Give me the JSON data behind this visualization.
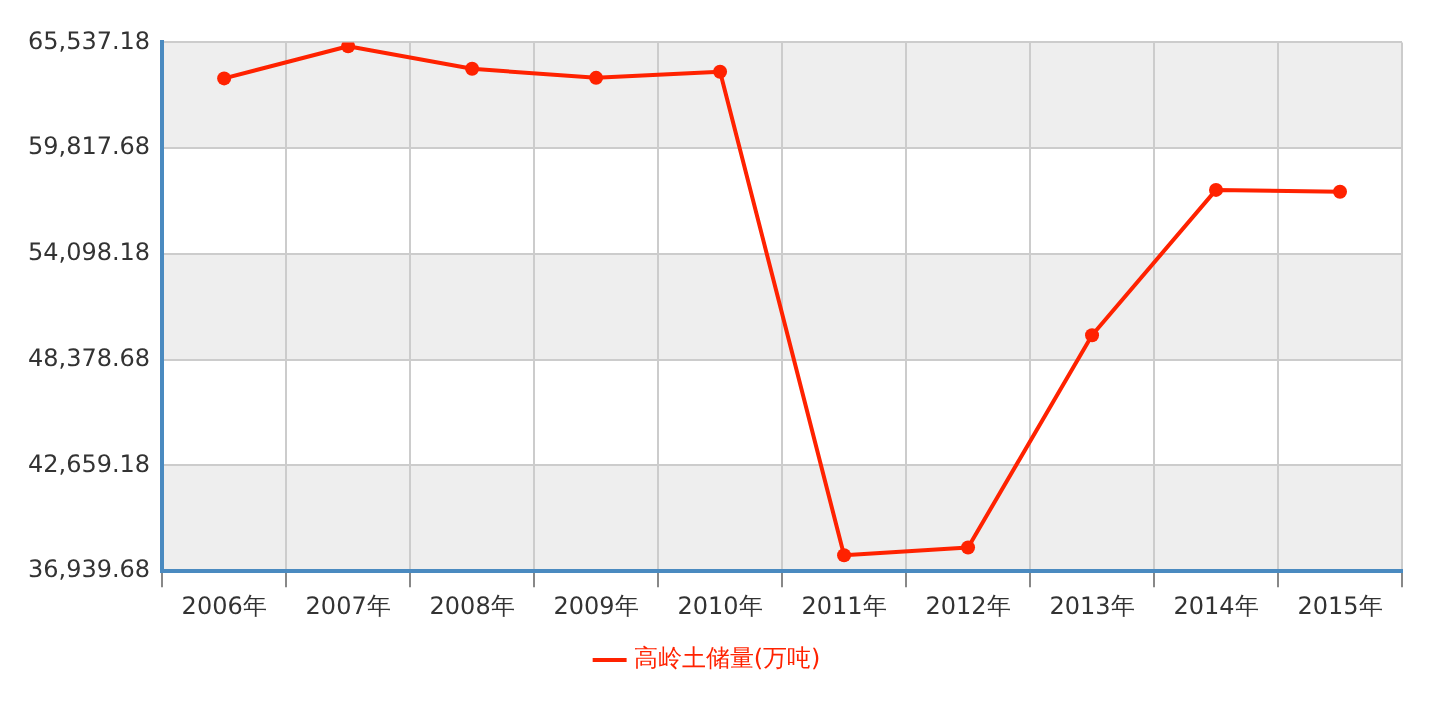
{
  "chart_data": {
    "type": "line",
    "categories": [
      "2006年",
      "2007年",
      "2008年",
      "2009年",
      "2010年",
      "2011年",
      "2012年",
      "2013年",
      "2014年",
      "2015年"
    ],
    "series": [
      {
        "name": "高岭土储量(万吨)",
        "color": "#ff2200",
        "values": [
          63590,
          65330,
          64110,
          63620,
          63950,
          37800,
          38220,
          49700,
          57560,
          57460
        ]
      }
    ],
    "ylim": [
      36939.68,
      65537.18
    ],
    "yticks": [
      {
        "value": 36939.68,
        "label": "36,939.68"
      },
      {
        "value": 42659.18,
        "label": "42,659.18"
      },
      {
        "value": 48378.68,
        "label": "48,378.68"
      },
      {
        "value": 54098.18,
        "label": "54,098.18"
      },
      {
        "value": 59817.68,
        "label": "59,817.68"
      },
      {
        "value": 65537.18,
        "label": "65,537.18"
      }
    ],
    "grid": true,
    "legend": "bottom",
    "marker": "circle",
    "line_style": "solid"
  }
}
